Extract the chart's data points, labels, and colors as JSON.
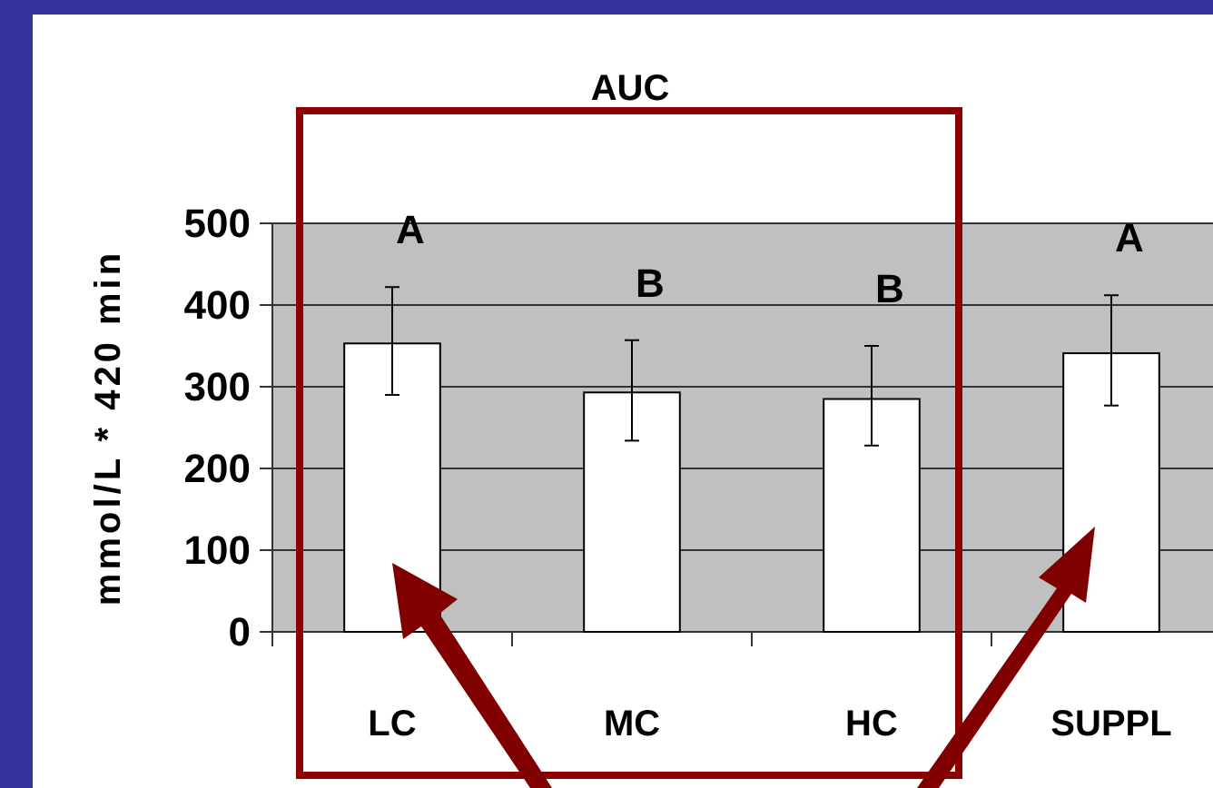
{
  "chart_data": {
    "type": "bar",
    "title": "AUC",
    "ylabel": "mmol/L * 420 min",
    "categories": [
      "LC",
      "MC",
      "HC",
      "SUPPL"
    ],
    "values": [
      353,
      293,
      285,
      341
    ],
    "color": "#ffffff",
    "errors": [
      [
        290,
        422
      ],
      [
        234,
        357
      ],
      [
        228,
        350
      ],
      [
        277,
        412
      ]
    ],
    "ylim": [
      0,
      500
    ],
    "yticks": [
      0,
      100,
      200,
      300,
      400,
      500
    ],
    "grid": "y",
    "annotations": [
      "A",
      "B",
      "B",
      "A"
    ]
  }
}
